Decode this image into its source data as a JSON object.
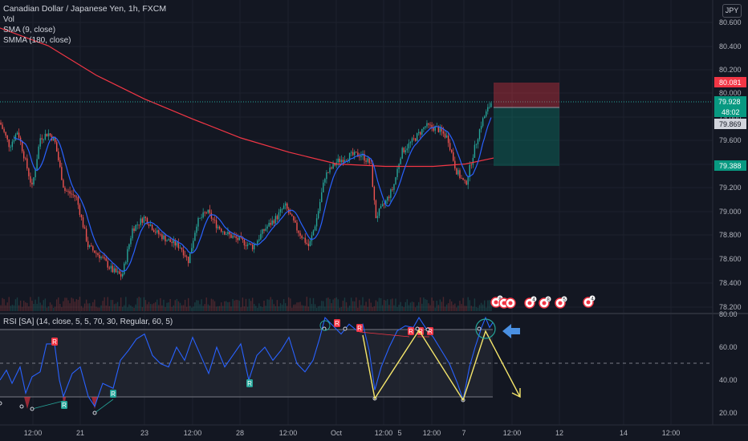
{
  "header": {
    "symbol": "Canadian Dollar / Japanese Yen, 1h, FXCM",
    "volume": "Vol",
    "sma": "SMA (9, close)",
    "smma": "SMMA (180, close)",
    "currency": "JPY"
  },
  "price_axis": {
    "ticks": [
      "80.600",
      "80.400",
      "80.200",
      "80.000",
      "79.800",
      "79.600",
      "79.400",
      "79.200",
      "79.000",
      "78.800",
      "78.600",
      "78.400",
      "78.200"
    ]
  },
  "price_labels": {
    "stop": "80.081",
    "current": "79.928",
    "countdown": "48:02",
    "smma_value": "79.869",
    "target": "79.388"
  },
  "rsi": {
    "title": "RSI [SA] (14, close, 5, 5, 70, 30, Regular, 60, 5)",
    "ticks": [
      "80.00",
      "60.00",
      "40.00",
      "20.00"
    ]
  },
  "time_axis": {
    "ticks": [
      "12:00",
      "21",
      "12:00",
      "23",
      "12:00",
      "28",
      "12:00",
      "Oct",
      "12:00",
      "5",
      "12:00",
      "7",
      "12:00",
      "12",
      "14",
      "12:00"
    ]
  },
  "events": {
    "markers": [
      "8",
      "4",
      "8",
      "5",
      "4"
    ]
  },
  "colors": {
    "background": "#131722",
    "up": "#26a69a",
    "down": "#ef5350",
    "sma": "#2962ff",
    "smma": "#f23645",
    "rsi": "#2962ff",
    "annotation": "#f5e66b",
    "arrow": "#4a90e2"
  }
}
